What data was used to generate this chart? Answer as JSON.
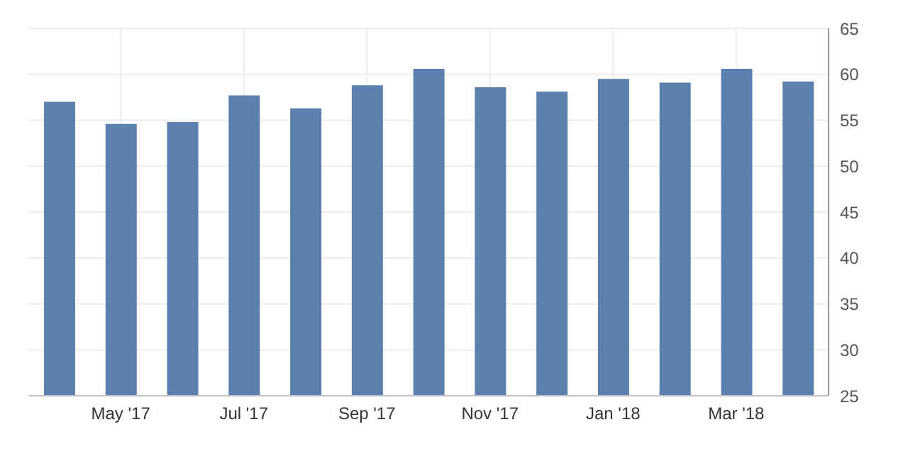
{
  "chart_data": {
    "type": "bar",
    "categories": [
      null,
      "May '17",
      null,
      "Jul '17",
      null,
      "Sep '17",
      null,
      "Nov '17",
      null,
      "Jan '18",
      null,
      "Mar '18",
      null
    ],
    "values": [
      57.0,
      54.6,
      54.8,
      57.7,
      56.3,
      58.8,
      60.6,
      58.6,
      58.1,
      59.5,
      59.1,
      60.6,
      59.2
    ],
    "color": "#5b80ae",
    "ylim": [
      25,
      65
    ],
    "yticks": [
      25,
      30,
      35,
      40,
      45,
      50,
      55,
      60,
      65
    ],
    "grid": true
  }
}
